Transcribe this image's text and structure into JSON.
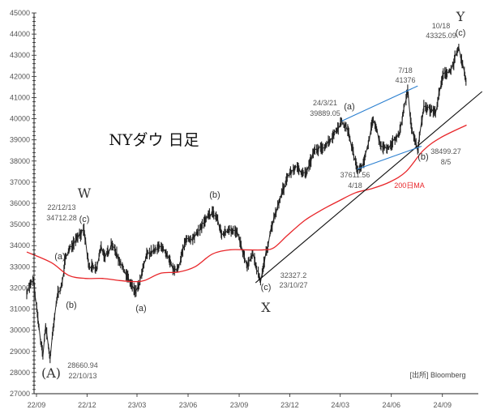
{
  "chart_data": {
    "type": "line",
    "title": "NYダウ 日足",
    "source": "[出所] Bloomberg",
    "ylim": [
      27000,
      45000
    ],
    "yticks": [
      27000,
      28000,
      29000,
      30000,
      31000,
      32000,
      33000,
      34000,
      35000,
      36000,
      37000,
      38000,
      39000,
      40000,
      41000,
      42000,
      43000,
      44000,
      45000
    ],
    "xticks": [
      "22/09",
      "22/12",
      "23/03",
      "23/06",
      "23/09",
      "23/12",
      "24/03",
      "24/06",
      "24/09"
    ],
    "series": [
      {
        "name": "NY Dow daily",
        "color": "#222222",
        "points": [
          [
            "22/09/01",
            31800
          ],
          [
            "22/09/13",
            32400
          ],
          [
            "22/09/22",
            30300
          ],
          [
            "22/09/30",
            28800
          ],
          [
            "22/10/05",
            30200
          ],
          [
            "22/10/13",
            28661
          ],
          [
            "22/10/21",
            30600
          ],
          [
            "22/10/27",
            31800
          ],
          [
            "22/11/03",
            32100
          ],
          [
            "22/11/10",
            33500
          ],
          [
            "22/11/30",
            34400
          ],
          [
            "22/12/13",
            34712
          ],
          [
            "22/12/22",
            33000
          ],
          [
            "23/01/05",
            32900
          ],
          [
            "23/01/13",
            34000
          ],
          [
            "23/01/20",
            33400
          ],
          [
            "23/02/01",
            34100
          ],
          [
            "23/02/24",
            32800
          ],
          [
            "23/03/15",
            31800
          ],
          [
            "23/03/22",
            32100
          ],
          [
            "23/04/05",
            33600
          ],
          [
            "23/04/21",
            33800
          ],
          [
            "23/05/01",
            34000
          ],
          [
            "23/05/25",
            32800
          ],
          [
            "23/06/01",
            33000
          ],
          [
            "23/06/15",
            34300
          ],
          [
            "23/06/30",
            34400
          ],
          [
            "23/07/20",
            35200
          ],
          [
            "23/08/01",
            35600
          ],
          [
            "23/08/10",
            35300
          ],
          [
            "23/08/18",
            34500
          ],
          [
            "23/09/01",
            34800
          ],
          [
            "23/09/15",
            34600
          ],
          [
            "23/10/03",
            33000
          ],
          [
            "23/10/13",
            33600
          ],
          [
            "23/10/27",
            32327
          ],
          [
            "23/11/15",
            34800
          ],
          [
            "23/12/01",
            36200
          ],
          [
            "23/12/15",
            37300
          ],
          [
            "23/12/29",
            37700
          ],
          [
            "24/01/17",
            37400
          ],
          [
            "24/02/01",
            38500
          ],
          [
            "24/02/15",
            38600
          ],
          [
            "24/03/01",
            39000
          ],
          [
            "24/03/21",
            39889
          ],
          [
            "24/04/01",
            39500
          ],
          [
            "24/04/18",
            37612
          ],
          [
            "24/04/30",
            37900
          ],
          [
            "24/05/17",
            40000
          ],
          [
            "24/05/31",
            38700
          ],
          [
            "24/06/14",
            38600
          ],
          [
            "24/07/03",
            39300
          ],
          [
            "24/07/18",
            41376
          ],
          [
            "24/07/25",
            39500
          ],
          [
            "24/08/05",
            38499
          ],
          [
            "24/08/16",
            40600
          ],
          [
            "24/09/06",
            40300
          ],
          [
            "24/09/20",
            42100
          ],
          [
            "24/10/04",
            42300
          ],
          [
            "24/10/18",
            43325
          ],
          [
            "24/10/31",
            41800
          ],
          [
            "24/11/01",
            42050
          ]
        ]
      },
      {
        "name": "200日MA",
        "color": "#e8262a",
        "points": [
          [
            "22/09/01",
            33700
          ],
          [
            "22/10/15",
            33200
          ],
          [
            "22/11/15",
            32600
          ],
          [
            "22/12/15",
            32450
          ],
          [
            "23/01/15",
            32450
          ],
          [
            "23/02/15",
            32350
          ],
          [
            "23/03/15",
            32300
          ],
          [
            "23/04/01",
            32350
          ],
          [
            "23/05/01",
            32700
          ],
          [
            "23/06/01",
            32750
          ],
          [
            "23/07/01",
            33000
          ],
          [
            "23/08/01",
            33600
          ],
          [
            "23/09/01",
            33800
          ],
          [
            "23/10/01",
            33800
          ],
          [
            "23/11/01",
            33800
          ],
          [
            "23/11/20",
            33900
          ],
          [
            "23/12/15",
            34500
          ],
          [
            "24/01/15",
            35200
          ],
          [
            "24/02/15",
            35700
          ],
          [
            "24/03/15",
            36100
          ],
          [
            "24/04/15",
            36500
          ],
          [
            "24/05/15",
            36700
          ],
          [
            "24/06/15",
            37000
          ],
          [
            "24/07/15",
            37500
          ],
          [
            "24/08/15",
            38500
          ],
          [
            "24/09/15",
            39100
          ],
          [
            "24/11/01",
            39700
          ]
        ]
      }
    ],
    "trendlines": [
      {
        "name": "support-trendline",
        "color": "#111111",
        "points": [
          [
            "23/10/18",
            32246
          ],
          [
            "24/11/29",
            41285
          ]
        ]
      },
      {
        "name": "upper-channel-line",
        "color": "#2a7fd0",
        "points": [
          [
            "24/03/21",
            39889
          ],
          [
            "24/08/05",
            41550
          ]
        ]
      },
      {
        "name": "lower-channel-line",
        "color": "#2a7fd0",
        "points": [
          [
            "24/04/18",
            37612
          ],
          [
            "24/08/12",
            38700
          ]
        ]
      }
    ],
    "annotations": {
      "W": "W",
      "w_date": "22/12/13",
      "w_value": "34712.28",
      "w_c": "(c)",
      "a1": "(a)",
      "b1": "(b)",
      "A": "(A)",
      "A_value": "28660.94",
      "A_date": "22/10/13",
      "b_mid": "(b)",
      "a_mid": "(a)",
      "X_value": "32327.2",
      "X_date": "23/10/27",
      "X_c": "(c)",
      "X": "X",
      "a_2403_date": "24/3/21",
      "a_2403_value": "39889.05",
      "a_2403": "(a)",
      "jul_date": "7/18",
      "jul_value": "41376",
      "Y_date": "10/18",
      "Y_value": "43325.09",
      "Y_c": "(c)",
      "Y": "Y",
      "apr_value": "37611.56",
      "apr_date": "4/18",
      "b_2408": "(b)",
      "aug_value": "38499.27",
      "aug_date": "8/5",
      "ma_label": "200日MA"
    }
  }
}
